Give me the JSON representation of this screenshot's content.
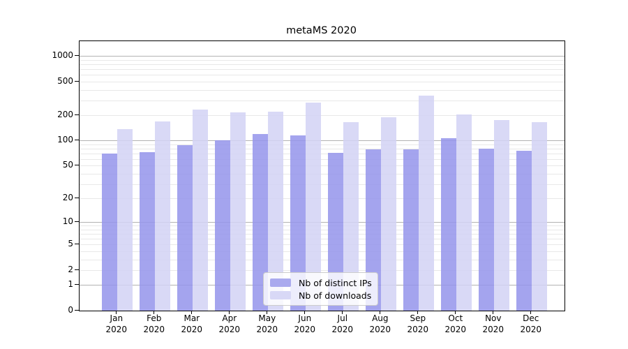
{
  "title": "metaMS 2020",
  "chart_data": {
    "type": "bar",
    "title": "metaMS 2020",
    "xlabel": "",
    "ylabel": "",
    "yscale": "log1p",
    "ylim": [
      0,
      1500
    ],
    "grid": {
      "major": [
        1,
        10,
        100,
        1000
      ],
      "minor_mantissas": [
        2,
        3,
        4,
        5,
        6,
        7,
        8,
        9
      ],
      "minor_decades": [
        1,
        10,
        100
      ]
    },
    "ytick_labels": [
      0,
      1,
      2,
      5,
      10,
      20,
      50,
      100,
      200,
      500,
      1000
    ],
    "categories": [
      "Jan",
      "Feb",
      "Mar",
      "Apr",
      "May",
      "Jun",
      "Jul",
      "Aug",
      "Sep",
      "Oct",
      "Nov",
      "Dec"
    ],
    "year": "2020",
    "legend_position": "lower center",
    "series": [
      {
        "name": "Nb of distinct IPs",
        "legend_color": "#aaaaee",
        "fill": "rgba(148,148,235,0.85)",
        "values": [
          70,
          73,
          88,
          101,
          120,
          115,
          72,
          79,
          79,
          107,
          80,
          76
        ]
      },
      {
        "name": "Nb of downloads",
        "legend_color": "#d8d8f6",
        "fill": "rgba(210,210,245,0.85)",
        "values": [
          137,
          168,
          232,
          215,
          222,
          280,
          165,
          188,
          340,
          205,
          174,
          164
        ]
      }
    ]
  }
}
